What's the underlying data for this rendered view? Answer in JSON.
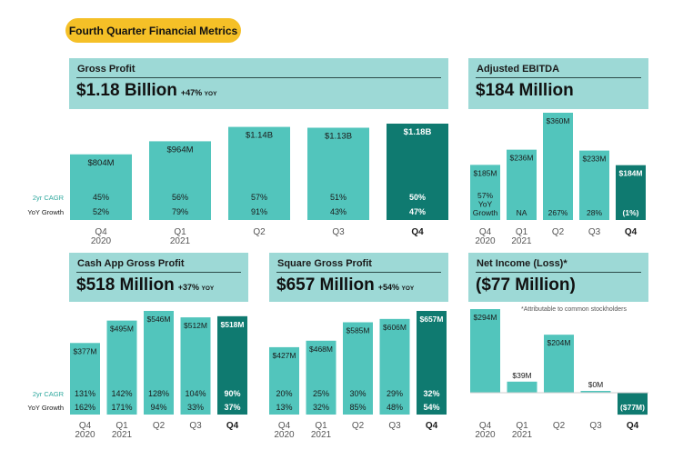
{
  "title": "Fourth Quarter Financial Metrics",
  "colors": {
    "light": "#52c5bc",
    "dark": "#0f7a70",
    "header": "#9dd9d6",
    "pill": "#f5c027",
    "cagr_label": "#2fa89e"
  },
  "labels": {
    "cagr": "2yr CAGR",
    "yoy": "YoY Growth"
  },
  "panels": {
    "gross_profit": {
      "label": "Gross Profit",
      "value": "$1.18 Billion",
      "yoy_pct": "+47%",
      "yoy_txt": "YOY"
    },
    "ebitda": {
      "label": "Adjusted EBITDA",
      "value": "$184 Million"
    },
    "cash_app": {
      "label": "Cash App Gross Profit",
      "value": "$518 Million",
      "yoy_pct": "+37%",
      "yoy_txt": "YOY"
    },
    "square": {
      "label": "Square Gross Profit",
      "value": "$657 Million",
      "yoy_pct": "+54%",
      "yoy_txt": "YOY"
    },
    "net_income": {
      "label": "Net Income (Loss)*",
      "value": "($77 Million)",
      "note": "*Attributable to common stockholders"
    }
  },
  "chart_data": [
    {
      "name": "gross_profit",
      "type": "bar",
      "unit": "USD millions",
      "categories": [
        [
          "Q4",
          "2020"
        ],
        [
          "Q1",
          "2021"
        ],
        [
          "Q2"
        ],
        [
          "Q3"
        ],
        [
          "Q4"
        ]
      ],
      "values": [
        804,
        964,
        1140,
        1130,
        1180
      ],
      "value_labels": [
        "$804M",
        "$964M",
        "$1.14B",
        "$1.13B",
        "$1.18B"
      ],
      "cagr": [
        "45%",
        "56%",
        "57%",
        "51%",
        "50%"
      ],
      "yoy": [
        "52%",
        "79%",
        "91%",
        "43%",
        "47%"
      ]
    },
    {
      "name": "ebitda",
      "type": "bar",
      "unit": "USD millions",
      "categories": [
        [
          "Q4",
          "2020"
        ],
        [
          "Q1",
          "2021"
        ],
        [
          "Q2"
        ],
        [
          "Q3"
        ],
        [
          "Q4"
        ]
      ],
      "values": [
        185,
        236,
        360,
        233,
        184
      ],
      "value_labels": [
        "$185M",
        "$236M",
        "$360M",
        "$233M",
        "$184M"
      ],
      "growth": [
        [
          "57%",
          "YoY",
          "Growth"
        ],
        [
          "NA"
        ],
        [
          "267%"
        ],
        [
          "28%"
        ],
        [
          "(1%)"
        ]
      ]
    },
    {
      "name": "cash_app",
      "type": "bar",
      "unit": "USD millions",
      "categories": [
        [
          "Q4",
          "2020"
        ],
        [
          "Q1",
          "2021"
        ],
        [
          "Q2"
        ],
        [
          "Q3"
        ],
        [
          "Q4"
        ]
      ],
      "values": [
        377,
        495,
        546,
        512,
        518
      ],
      "value_labels": [
        "$377M",
        "$495M",
        "$546M",
        "$512M",
        "$518M"
      ],
      "cagr": [
        "131%",
        "142%",
        "128%",
        "104%",
        "90%"
      ],
      "yoy": [
        "162%",
        "171%",
        "94%",
        "33%",
        "37%"
      ]
    },
    {
      "name": "square",
      "type": "bar",
      "unit": "USD millions",
      "categories": [
        [
          "Q4",
          "2020"
        ],
        [
          "Q1",
          "2021"
        ],
        [
          "Q2"
        ],
        [
          "Q3"
        ],
        [
          "Q4"
        ]
      ],
      "values": [
        427,
        468,
        585,
        606,
        657
      ],
      "value_labels": [
        "$427M",
        "$468M",
        "$585M",
        "$606M",
        "$657M"
      ],
      "cagr": [
        "20%",
        "25%",
        "30%",
        "29%",
        "32%"
      ],
      "yoy": [
        "13%",
        "32%",
        "85%",
        "48%",
        "54%"
      ]
    },
    {
      "name": "net_income",
      "type": "bar",
      "unit": "USD millions",
      "categories": [
        [
          "Q4",
          "2020"
        ],
        [
          "Q1",
          "2021"
        ],
        [
          "Q2"
        ],
        [
          "Q3"
        ],
        [
          "Q4"
        ]
      ],
      "values": [
        294,
        39,
        204,
        0,
        -77
      ],
      "value_labels": [
        "$294M",
        "$39M",
        "$204M",
        "$0M",
        "($77M)"
      ]
    }
  ]
}
